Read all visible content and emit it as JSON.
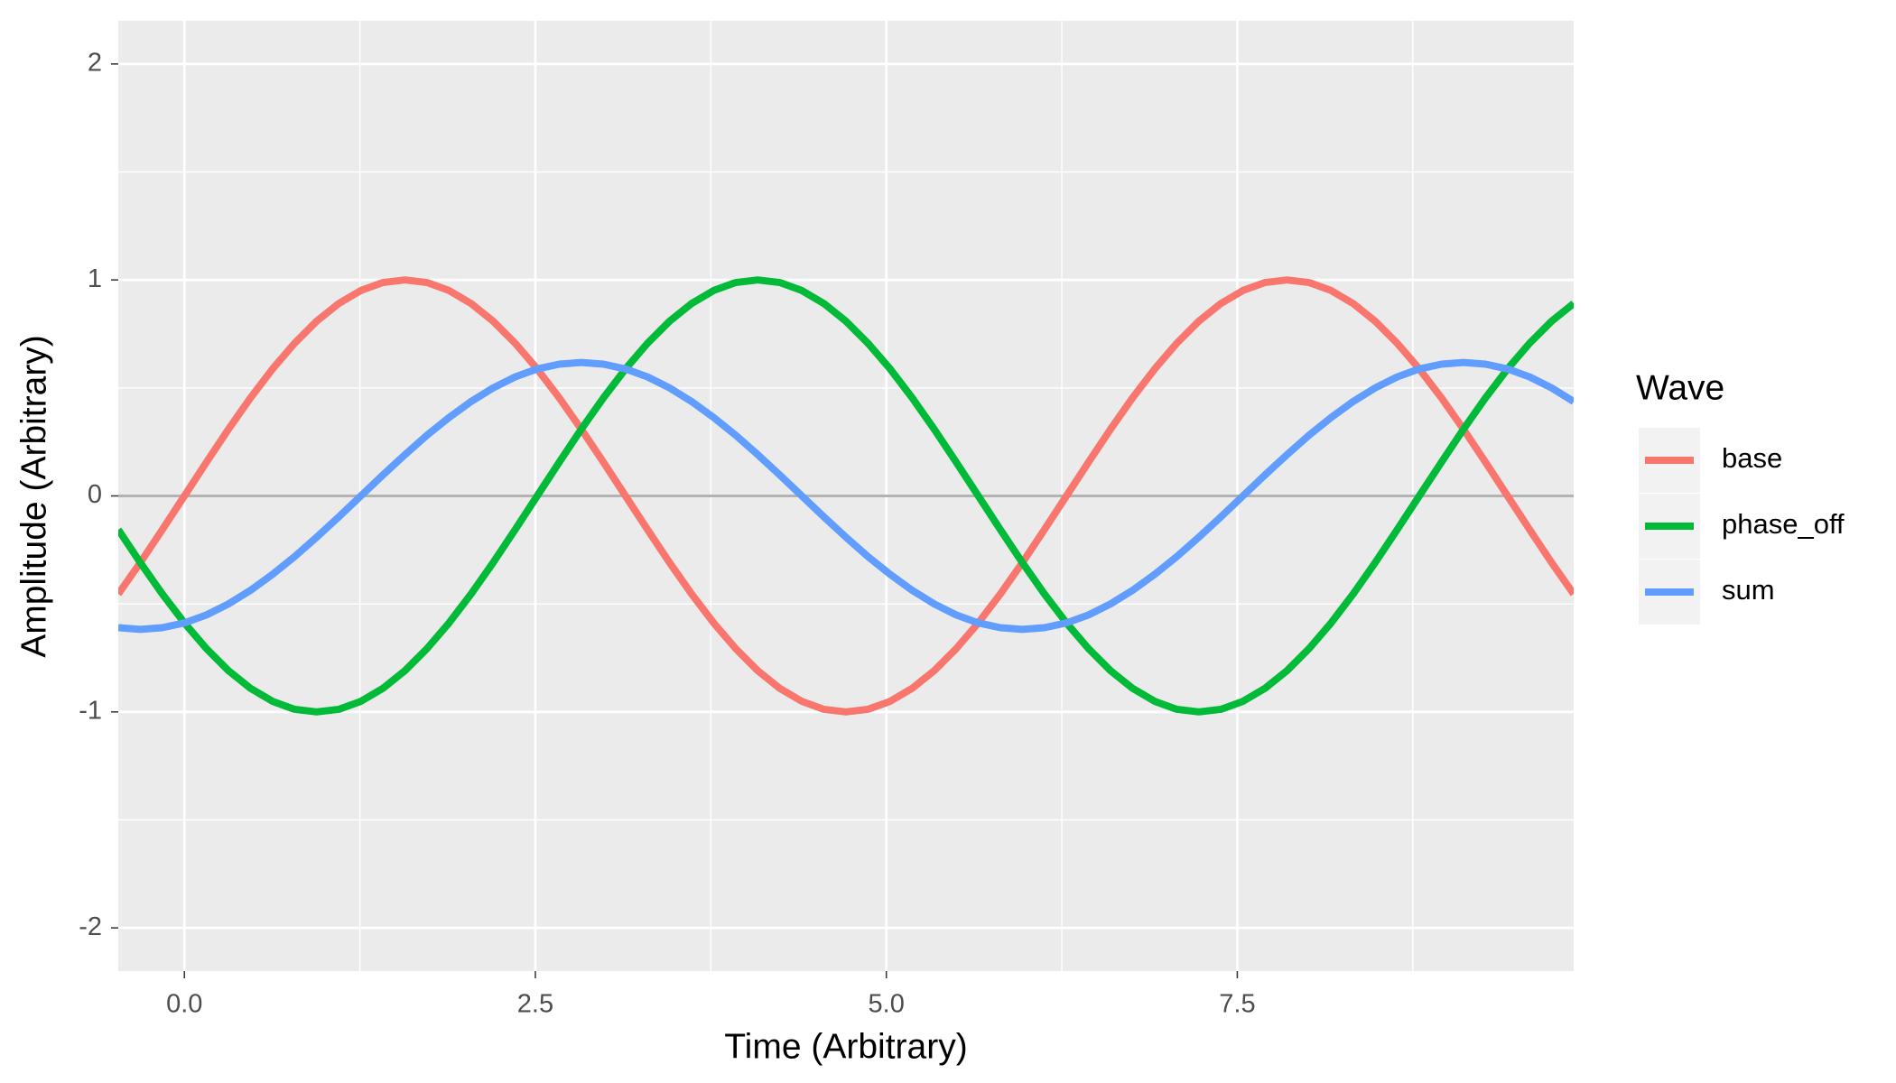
{
  "chart_data": {
    "type": "line",
    "x_label": "Time (Arbitrary)",
    "y_label": "Amplitude (Arbitrary)",
    "legend_title": "Wave",
    "legend": "right",
    "grid": true,
    "xlim": [
      -0.471,
      9.896
    ],
    "ylim": [
      -2.2,
      2.2
    ],
    "xticks": [
      {
        "value": 0,
        "label": "0.0"
      },
      2.5,
      {
        "value": 5,
        "label": "5.0"
      },
      7.5
    ],
    "yticks": [
      -2,
      -1,
      0,
      1,
      2
    ],
    "xminor": [
      1.25,
      3.75,
      6.25,
      8.75
    ],
    "yminor": [
      -1.5,
      -0.5,
      0.5,
      1.5
    ],
    "hline": {
      "value": 0,
      "color": "#b3b3b3"
    },
    "x": [
      -0.471,
      -0.314,
      -0.157,
      0,
      0.157,
      0.314,
      0.471,
      0.628,
      0.785,
      0.942,
      1.1,
      1.257,
      1.414,
      1.571,
      1.728,
      1.885,
      2.042,
      2.199,
      2.356,
      2.513,
      2.67,
      2.827,
      2.985,
      3.142,
      3.299,
      3.456,
      3.613,
      3.77,
      3.927,
      4.084,
      4.241,
      4.398,
      4.555,
      4.712,
      4.869,
      5.027,
      5.184,
      5.341,
      5.498,
      5.655,
      5.812,
      5.969,
      6.126,
      6.283,
      6.44,
      6.597,
      6.754,
      6.912,
      7.069,
      7.226,
      7.383,
      7.54,
      7.697,
      7.854,
      8.011,
      8.168,
      8.325,
      8.482,
      8.639,
      8.796,
      8.954,
      9.111,
      9.268,
      9.425,
      9.582,
      9.739,
      9.896
    ],
    "series": [
      {
        "name": "base",
        "color": "#F8766D",
        "values": [
          -0.454,
          -0.309,
          -0.156,
          0,
          0.156,
          0.309,
          0.454,
          0.588,
          0.707,
          0.809,
          0.891,
          0.951,
          0.988,
          1,
          0.988,
          0.951,
          0.891,
          0.809,
          0.707,
          0.588,
          0.454,
          0.309,
          0.156,
          0,
          -0.156,
          -0.309,
          -0.454,
          -0.588,
          -0.707,
          -0.809,
          -0.891,
          -0.951,
          -0.988,
          -1,
          -0.988,
          -0.951,
          -0.891,
          -0.809,
          -0.707,
          -0.588,
          -0.454,
          -0.309,
          -0.156,
          0,
          0.156,
          0.309,
          0.454,
          0.588,
          0.707,
          0.809,
          0.891,
          0.951,
          0.988,
          1,
          0.988,
          0.951,
          0.891,
          0.809,
          0.707,
          0.588,
          0.454,
          0.309,
          0.156,
          0,
          -0.156,
          -0.309,
          -0.454
        ]
      },
      {
        "name": "phase_off",
        "color": "#00BA38",
        "values": [
          -0.156,
          -0.309,
          -0.454,
          -0.588,
          -0.707,
          -0.809,
          -0.891,
          -0.951,
          -0.988,
          -1,
          -0.988,
          -0.951,
          -0.891,
          -0.809,
          -0.707,
          -0.588,
          -0.454,
          -0.309,
          -0.156,
          0,
          0.156,
          0.309,
          0.454,
          0.588,
          0.707,
          0.809,
          0.891,
          0.951,
          0.988,
          1,
          0.988,
          0.951,
          0.891,
          0.809,
          0.707,
          0.588,
          0.454,
          0.309,
          0.156,
          0,
          -0.156,
          -0.309,
          -0.454,
          -0.588,
          -0.707,
          -0.809,
          -0.891,
          -0.951,
          -0.988,
          -1,
          -0.988,
          -0.951,
          -0.891,
          -0.809,
          -0.707,
          -0.588,
          -0.454,
          -0.309,
          -0.156,
          0,
          0.156,
          0.309,
          0.454,
          0.588,
          0.707,
          0.809,
          0.891
        ]
      },
      {
        "name": "sum",
        "color": "#619CFF",
        "values": [
          -0.61,
          -0.618,
          -0.61,
          -0.588,
          -0.551,
          -0.5,
          -0.437,
          -0.363,
          -0.281,
          -0.191,
          -0.097,
          0,
          0.097,
          0.191,
          0.281,
          0.363,
          0.437,
          0.5,
          0.551,
          0.588,
          0.61,
          0.618,
          0.61,
          0.588,
          0.551,
          0.5,
          0.437,
          0.363,
          0.281,
          0.191,
          0.097,
          0,
          -0.097,
          -0.191,
          -0.281,
          -0.363,
          -0.437,
          -0.5,
          -0.551,
          -0.588,
          -0.61,
          -0.618,
          -0.61,
          -0.588,
          -0.551,
          -0.5,
          -0.437,
          -0.363,
          -0.281,
          -0.191,
          -0.097,
          0,
          0.097,
          0.191,
          0.281,
          0.363,
          0.437,
          0.5,
          0.551,
          0.588,
          0.61,
          0.618,
          0.61,
          0.588,
          0.551,
          0.5,
          0.437
        ]
      }
    ]
  }
}
